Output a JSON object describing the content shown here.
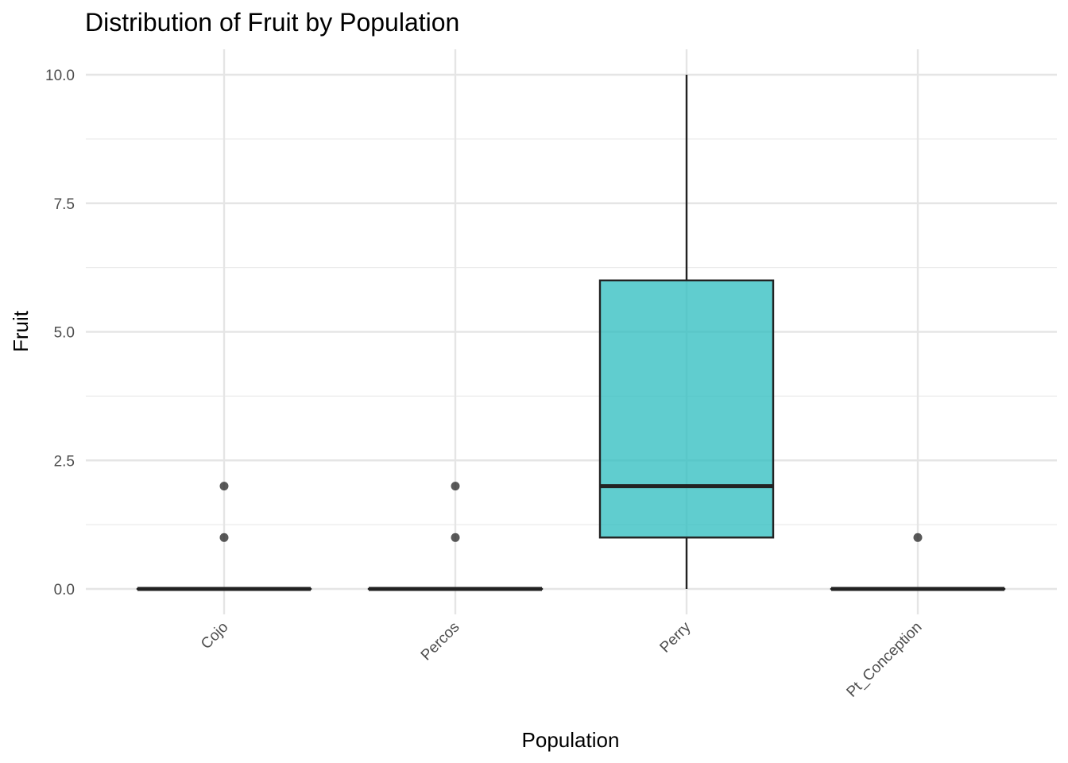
{
  "chart_data": {
    "type": "boxplot",
    "title": "Distribution of Fruit by Population",
    "xlabel": "Population",
    "ylabel": "Fruit",
    "categories": [
      "Cojo",
      "Percos",
      "Perry",
      "Pt_Conception"
    ],
    "ylim": [
      -0.5,
      10.5
    ],
    "yticks": [
      "0.0",
      "2.5",
      "5.0",
      "7.5",
      "10.0"
    ],
    "ytick_values": [
      0,
      2.5,
      5,
      7.5,
      10
    ],
    "grid": true,
    "legend": "none",
    "fill_color": "#2bbcbf",
    "line_color": "#222222",
    "boxes": [
      {
        "category": "Cojo",
        "min": 0,
        "q1": 0,
        "median": 0,
        "q3": 0,
        "max": 0,
        "outliers": [
          1,
          2
        ]
      },
      {
        "category": "Percos",
        "min": 0,
        "q1": 0,
        "median": 0,
        "q3": 0,
        "max": 0,
        "outliers": [
          1,
          2
        ]
      },
      {
        "category": "Perry",
        "min": 0,
        "q1": 1,
        "median": 2,
        "q3": 6,
        "max": 10,
        "outliers": []
      },
      {
        "category": "Pt_Conception",
        "min": 0,
        "q1": 0,
        "median": 0,
        "q3": 0,
        "max": 0,
        "outliers": [
          1
        ]
      }
    ]
  }
}
